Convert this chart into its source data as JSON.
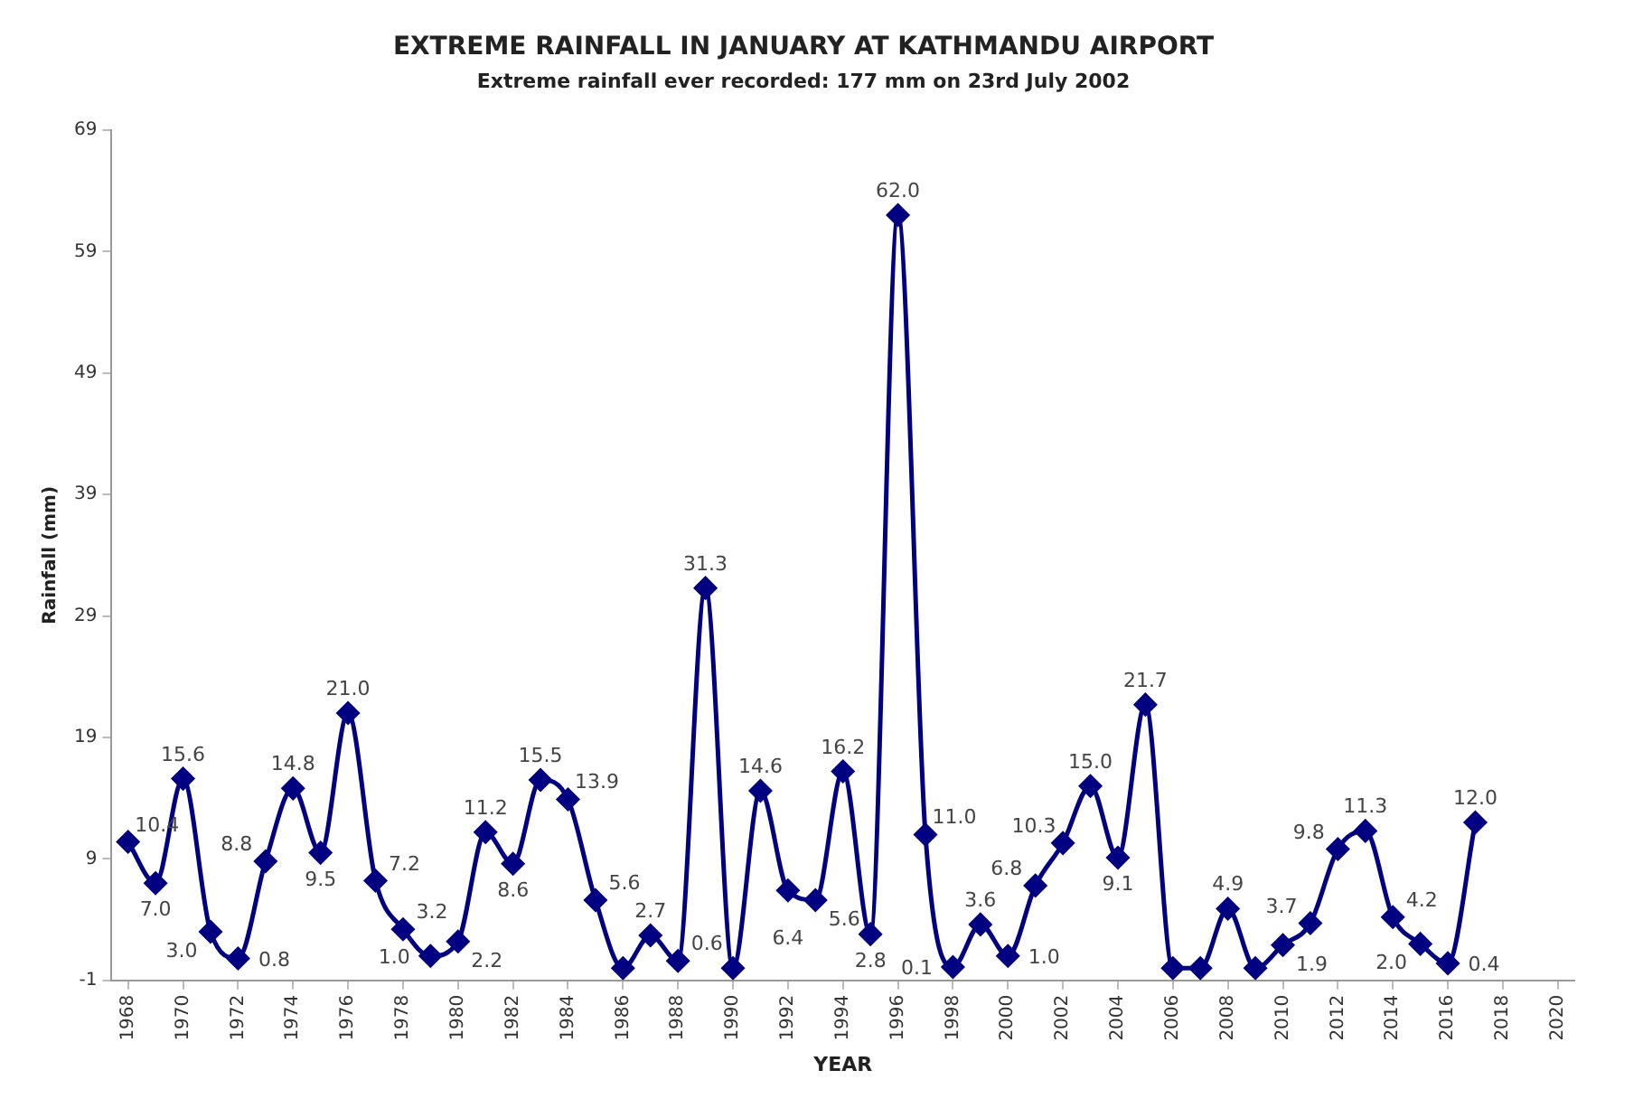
{
  "chart_data": {
    "type": "line",
    "title": "EXTREME RAINFALL IN JANUARY AT KATHMANDU AIRPORT",
    "subtitle": "Extreme rainfall ever recorded: 177 mm on 23rd July 2002",
    "xlabel": "YEAR",
    "ylabel": "Rainfall (mm)",
    "x": [
      1968,
      1969,
      1970,
      1971,
      1972,
      1973,
      1974,
      1975,
      1976,
      1977,
      1978,
      1979,
      1980,
      1981,
      1982,
      1983,
      1984,
      1985,
      1986,
      1987,
      1988,
      1989,
      1990,
      1991,
      1992,
      1993,
      1994,
      1995,
      1996,
      1997,
      1998,
      1999,
      2000,
      2001,
      2002,
      2003,
      2004,
      2005,
      2006,
      2007,
      2008,
      2009,
      2010,
      2011,
      2012,
      2013,
      2014,
      2015,
      2016,
      2017
    ],
    "series": [
      {
        "color": "#000080",
        "values": [
          10.4,
          7.0,
          15.6,
          3.0,
          0.8,
          8.8,
          14.8,
          9.5,
          21.0,
          7.2,
          3.2,
          1.0,
          2.2,
          11.2,
          8.6,
          15.5,
          13.9,
          5.6,
          0,
          2.7,
          0.6,
          31.3,
          0,
          14.6,
          6.4,
          5.6,
          16.2,
          2.8,
          62.0,
          11.0,
          0.1,
          3.6,
          1.0,
          6.8,
          10.3,
          15.0,
          9.1,
          21.7,
          0,
          0,
          4.9,
          0,
          1.9,
          3.7,
          9.8,
          11.3,
          4.2,
          2.0,
          0.4,
          12.0
        ],
        "value_labels": [
          "10.4",
          "7.0",
          "15.6",
          "3.0",
          "0.8",
          "8.8",
          "14.8",
          "9.5",
          "21.0",
          "7.2",
          "3.2",
          "1.0",
          "2.2",
          "11.2",
          "8.6",
          "15.5",
          "13.9",
          "5.6",
          null,
          "2.7",
          "0.6",
          "31.3",
          null,
          "14.6",
          "6.4",
          "5.6",
          "16.2",
          "2.8",
          "62.0",
          "11.0",
          "0.1",
          "3.6",
          "1.0",
          "6.8",
          "10.3",
          "15.0",
          "9.1",
          "21.7",
          null,
          null,
          "4.9",
          null,
          "1.9",
          "3.7",
          "9.8",
          "11.3",
          "4.2",
          "2.0",
          "0.4",
          "12.0"
        ]
      }
    ],
    "xlim": [
      1967.4,
      2020.6
    ],
    "xticks": [
      1968,
      1970,
      1972,
      1974,
      1976,
      1978,
      1980,
      1982,
      1984,
      1986,
      1988,
      1990,
      1992,
      1994,
      1996,
      1998,
      2000,
      2002,
      2004,
      2006,
      2008,
      2010,
      2012,
      2014,
      2016,
      2018,
      2020
    ],
    "ylim": [
      -1,
      69
    ],
    "yticks": [
      -1,
      9,
      19,
      29,
      39,
      49,
      59,
      69
    ],
    "grid": false,
    "legend": false,
    "marker": "diamond",
    "line_style": "solid"
  }
}
